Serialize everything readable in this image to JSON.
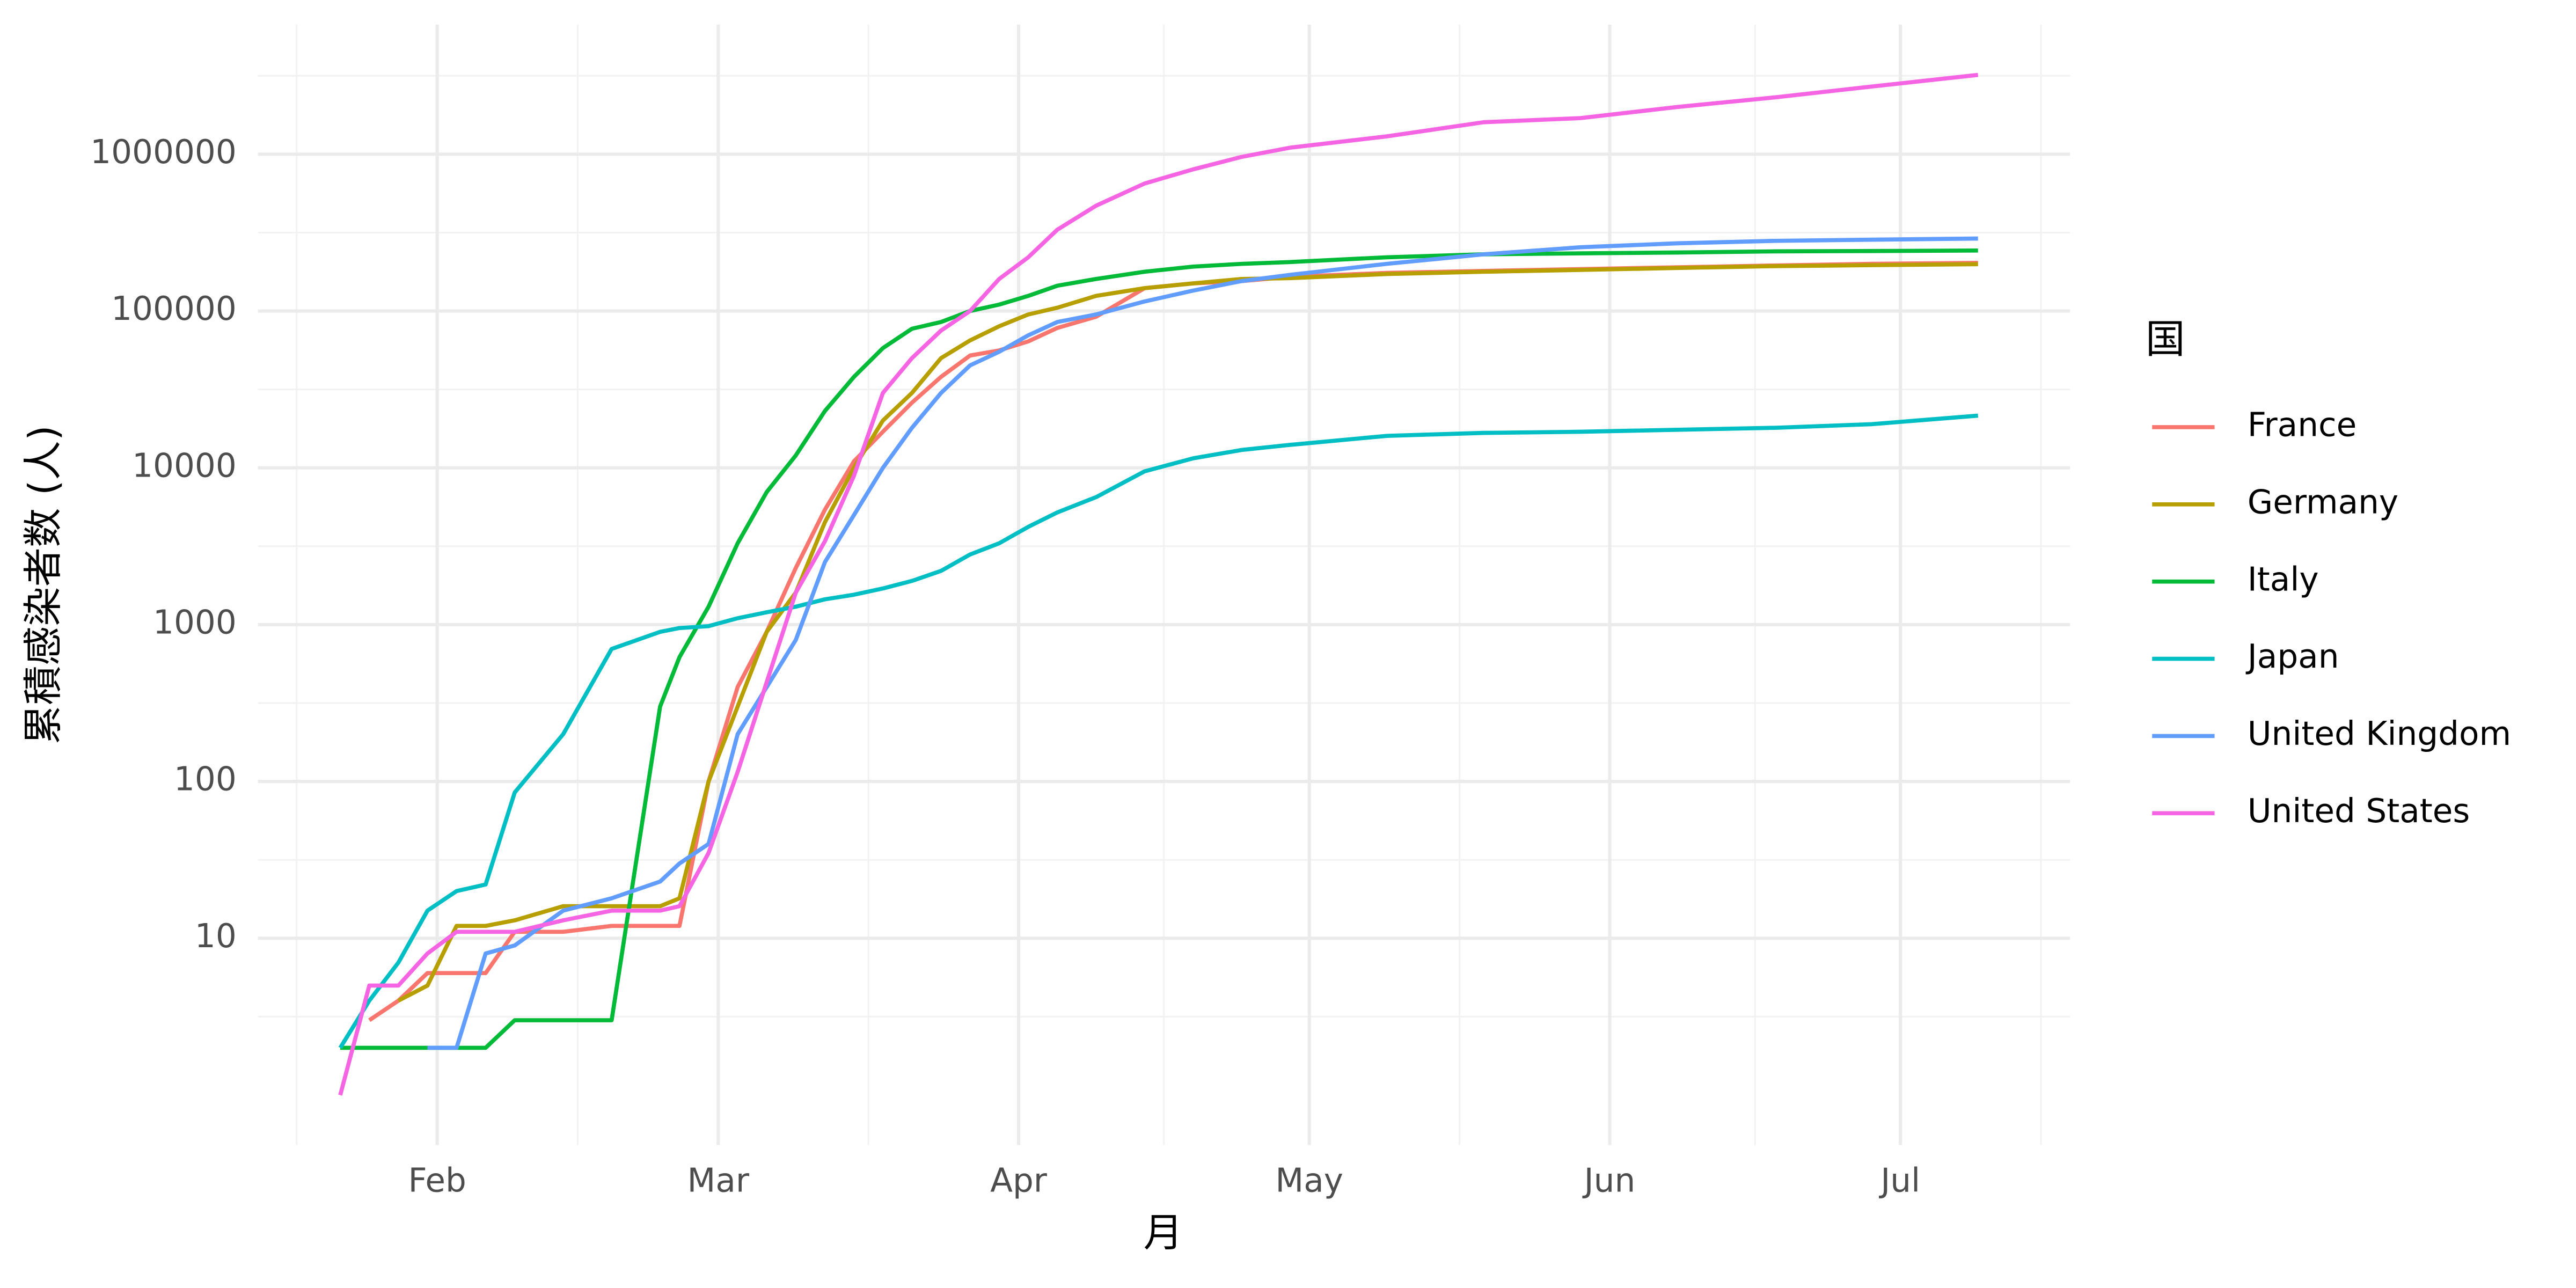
{
  "chart_data": {
    "type": "line",
    "x_label": "月",
    "y_label": "累積感染者数 (人)",
    "legend_title": "国",
    "log_y": true,
    "grid": true,
    "legend_position": "right",
    "xlim": [
      13.5,
      200.5
    ],
    "ylim": [
      0.48,
      6700000
    ],
    "xticks": [
      {
        "value": 32,
        "label": "Feb"
      },
      {
        "value": 61,
        "label": "Mar"
      },
      {
        "value": 92,
        "label": "Apr"
      },
      {
        "value": 122,
        "label": "May"
      },
      {
        "value": 153,
        "label": "Jun"
      },
      {
        "value": 183,
        "label": "Jul"
      }
    ],
    "yticks": [
      10,
      100,
      1000,
      10000,
      100000,
      1000000
    ],
    "x": [
      22,
      25,
      28,
      31,
      34,
      37,
      40,
      45,
      50,
      55,
      57,
      60,
      63,
      66,
      69,
      72,
      75,
      78,
      81,
      84,
      87,
      90,
      93,
      96,
      100,
      105,
      110,
      115,
      120,
      130,
      140,
      150,
      160,
      170,
      180,
      191
    ],
    "series": [
      {
        "name": "France",
        "color": "#F8766D",
        "values": [
          null,
          3,
          4,
          6,
          6,
          6,
          11,
          11,
          12,
          12,
          12,
          100,
          400,
          900,
          2300,
          5400,
          11000,
          17000,
          26000,
          38000,
          52000,
          56000,
          64000,
          78000,
          92000,
          140000,
          150000,
          155000,
          165000,
          175000,
          180000,
          185000,
          190000,
          195000,
          200000,
          203000
        ]
      },
      {
        "name": "Germany",
        "color": "#B79F00",
        "values": [
          null,
          null,
          4,
          5,
          12,
          12,
          13,
          16,
          16,
          16,
          18,
          100,
          300,
          900,
          1600,
          4500,
          10000,
          20000,
          30000,
          50000,
          65000,
          80000,
          95000,
          105000,
          125000,
          140000,
          150000,
          160000,
          162000,
          172000,
          178000,
          183000,
          188000,
          193000,
          196000,
          199000
        ]
      },
      {
        "name": "Italy",
        "color": "#00BA38",
        "values": [
          2,
          2,
          2,
          2,
          2,
          2,
          3,
          3,
          3,
          300,
          620,
          1300,
          3300,
          7000,
          12000,
          23000,
          38000,
          58000,
          77000,
          85000,
          100000,
          110000,
          125000,
          145000,
          160000,
          178000,
          192000,
          200000,
          205000,
          220000,
          230000,
          233000,
          236000,
          240000,
          241000,
          243000
        ]
      },
      {
        "name": "Japan",
        "color": "#00BFC4",
        "values": [
          2,
          4,
          7,
          15,
          20,
          22,
          85,
          200,
          700,
          900,
          950,
          980,
          1100,
          1200,
          1300,
          1450,
          1550,
          1700,
          1900,
          2200,
          2800,
          3300,
          4200,
          5200,
          6500,
          9500,
          11500,
          13000,
          14000,
          16000,
          16700,
          17000,
          17500,
          18000,
          19000,
          21500
        ]
      },
      {
        "name": "United Kingdom",
        "color": "#619CFF",
        "values": [
          null,
          null,
          null,
          2,
          2,
          8,
          9,
          15,
          18,
          23,
          30,
          40,
          200,
          400,
          800,
          2500,
          5000,
          10000,
          18000,
          30000,
          45000,
          55000,
          70000,
          85000,
          95000,
          115000,
          135000,
          155000,
          170000,
          200000,
          230000,
          255000,
          270000,
          280000,
          285000,
          290000
        ]
      },
      {
        "name": "United States",
        "color": "#F564E3",
        "values": [
          1,
          5,
          5,
          8,
          11,
          11,
          11,
          13,
          15,
          15,
          16,
          35,
          115,
          430,
          1600,
          3400,
          8900,
          30000,
          50000,
          75000,
          100000,
          160000,
          220000,
          330000,
          470000,
          650000,
          800000,
          960000,
          1100000,
          1300000,
          1600000,
          1700000,
          2000000,
          2300000,
          2700000,
          3200000
        ]
      }
    ]
  }
}
